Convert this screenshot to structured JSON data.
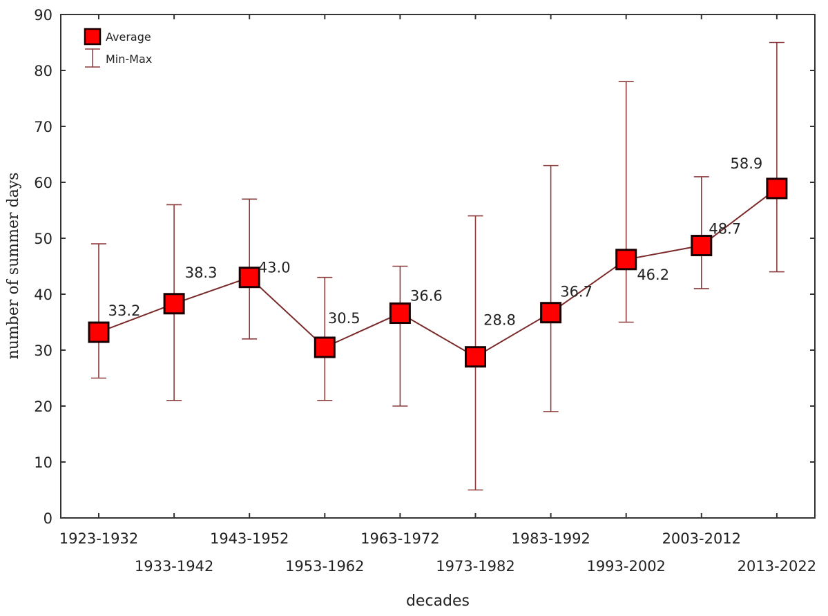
{
  "chart_data": {
    "type": "line",
    "title": "",
    "xlabel": "decades",
    "ylabel": "number of summer days",
    "ylim": [
      0,
      90
    ],
    "yticks": [
      0,
      10,
      20,
      30,
      40,
      50,
      60,
      70,
      80,
      90
    ],
    "grid": false,
    "legend_placement": "top-left",
    "legend": {
      "average": "Average",
      "minmax": "Min-Max"
    },
    "categories": [
      "1923-1932",
      "1933-1942",
      "1943-1952",
      "1953-1962",
      "1963-1972",
      "1973-1982",
      "1983-1992",
      "1993-2002",
      "2003-2012",
      "2013-2022"
    ],
    "series": [
      {
        "name": "Average",
        "values": [
          33.2,
          38.3,
          43.0,
          30.5,
          36.6,
          28.8,
          36.7,
          46.2,
          48.7,
          58.9
        ],
        "labels": [
          "33.2",
          "38.3",
          "43.0",
          "30.5",
          "36.6",
          "28.8",
          "36.7",
          "46.2",
          "48.7",
          "58.9"
        ]
      },
      {
        "name": "Min-Max",
        "min": [
          25,
          21,
          32,
          21,
          20,
          5,
          19,
          35,
          41,
          44
        ],
        "max": [
          49,
          56,
          57,
          43,
          45,
          54,
          63,
          78,
          61,
          85
        ]
      }
    ],
    "colors": {
      "marker_fill": "#ff0000",
      "marker_stroke": "#1a0000",
      "line": "#7a2a2a",
      "errorbar": "#8b3a3a"
    }
  }
}
